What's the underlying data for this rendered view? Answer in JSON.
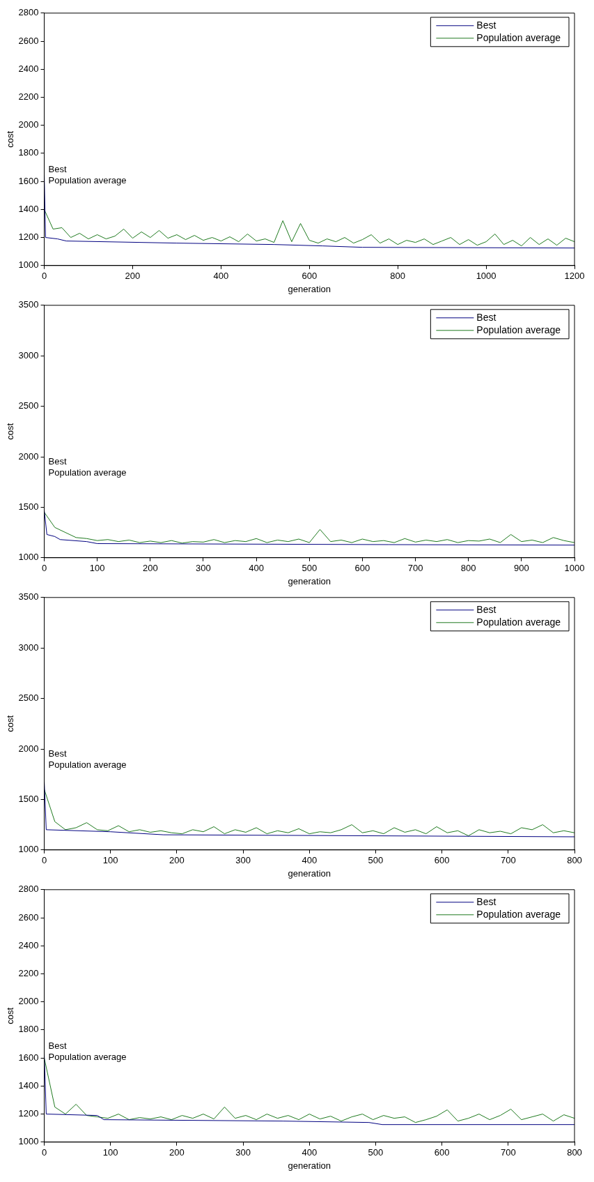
{
  "chart_data": [
    {
      "type": "line",
      "xlabel": "generation",
      "ylabel": "cost",
      "xlim": [
        0,
        1200
      ],
      "xticks": [
        0,
        200,
        400,
        600,
        800,
        1000,
        1200
      ],
      "ylim": [
        1000,
        2800
      ],
      "yticks": [
        1000,
        1200,
        1400,
        1600,
        1800,
        2000,
        2200,
        2400,
        2600,
        2800
      ],
      "grid": false,
      "legend": "top right",
      "marker": "none",
      "line_style": "solid",
      "annotations": [
        "Best",
        "Population average"
      ],
      "series": [
        {
          "name": "Best",
          "color": "#000080",
          "x": [
            0,
            3,
            30,
            50,
            300,
            520,
            630,
            720,
            1200
          ],
          "values": [
            1650,
            1200,
            1190,
            1175,
            1160,
            1150,
            1140,
            1130,
            1125
          ]
        },
        {
          "name": "Population average",
          "color": "#1f7a1f",
          "x": [
            0,
            20,
            40,
            60,
            80,
            100,
            120,
            140,
            160,
            180,
            200,
            220,
            240,
            260,
            280,
            300,
            320,
            340,
            360,
            380,
            400,
            420,
            440,
            460,
            480,
            500,
            520,
            540,
            560,
            580,
            600,
            620,
            640,
            660,
            680,
            700,
            720,
            740,
            760,
            780,
            800,
            820,
            840,
            860,
            880,
            900,
            920,
            940,
            960,
            980,
            1000,
            1020,
            1040,
            1060,
            1080,
            1100,
            1120,
            1140,
            1160,
            1180,
            1200
          ],
          "values": [
            1400,
            1260,
            1270,
            1200,
            1230,
            1190,
            1220,
            1190,
            1210,
            1260,
            1195,
            1240,
            1200,
            1250,
            1195,
            1220,
            1185,
            1215,
            1180,
            1200,
            1175,
            1205,
            1170,
            1225,
            1175,
            1190,
            1165,
            1320,
            1170,
            1300,
            1180,
            1160,
            1190,
            1170,
            1200,
            1160,
            1185,
            1220,
            1160,
            1190,
            1150,
            1180,
            1165,
            1190,
            1150,
            1175,
            1200,
            1150,
            1185,
            1145,
            1170,
            1225,
            1150,
            1180,
            1140,
            1200,
            1150,
            1190,
            1145,
            1195,
            1170
          ]
        }
      ]
    },
    {
      "type": "line",
      "xlabel": "generation",
      "ylabel": "cost",
      "xlim": [
        0,
        1000
      ],
      "xticks": [
        0,
        100,
        200,
        300,
        400,
        500,
        600,
        700,
        800,
        900,
        1000
      ],
      "ylim": [
        1000,
        3500
      ],
      "yticks": [
        1000,
        1500,
        2000,
        2500,
        3000,
        3500
      ],
      "grid": false,
      "legend": "top right",
      "marker": "none",
      "line_style": "solid",
      "annotations": [
        "Best",
        "Population average"
      ],
      "series": [
        {
          "name": "Best",
          "color": "#000080",
          "x": [
            0,
            5,
            20,
            30,
            80,
            100,
            650,
            1000
          ],
          "values": [
            1470,
            1230,
            1210,
            1180,
            1160,
            1140,
            1130,
            1125
          ]
        },
        {
          "name": "Population average",
          "color": "#1f7a1f",
          "x": [
            0,
            20,
            40,
            60,
            80,
            100,
            120,
            140,
            160,
            180,
            200,
            220,
            240,
            260,
            280,
            300,
            320,
            340,
            360,
            380,
            400,
            420,
            440,
            460,
            480,
            500,
            520,
            540,
            560,
            580,
            600,
            620,
            640,
            660,
            680,
            700,
            720,
            740,
            760,
            780,
            800,
            820,
            840,
            860,
            880,
            900,
            920,
            940,
            960,
            980,
            1000
          ],
          "values": [
            1450,
            1300,
            1250,
            1200,
            1190,
            1170,
            1180,
            1160,
            1175,
            1150,
            1165,
            1150,
            1170,
            1145,
            1160,
            1155,
            1180,
            1150,
            1170,
            1160,
            1190,
            1150,
            1175,
            1160,
            1185,
            1150,
            1280,
            1160,
            1175,
            1150,
            1185,
            1160,
            1170,
            1150,
            1190,
            1155,
            1175,
            1160,
            1180,
            1150,
            1170,
            1165,
            1185,
            1150,
            1230,
            1160,
            1175,
            1150,
            1200,
            1170,
            1150
          ]
        }
      ]
    },
    {
      "type": "line",
      "xlabel": "generation",
      "ylabel": "cost",
      "xlim": [
        0,
        800
      ],
      "xticks": [
        0,
        100,
        200,
        300,
        400,
        500,
        600,
        700,
        800
      ],
      "ylim": [
        1000,
        3500
      ],
      "yticks": [
        1000,
        1500,
        2000,
        2500,
        3000,
        3500
      ],
      "grid": false,
      "legend": "top right",
      "marker": "none",
      "line_style": "solid",
      "annotations": [
        "Best",
        "Population average"
      ],
      "series": [
        {
          "name": "Best",
          "color": "#000080",
          "x": [
            0,
            3,
            100,
            180,
            800
          ],
          "values": [
            1680,
            1200,
            1180,
            1150,
            1130
          ]
        },
        {
          "name": "Population average",
          "color": "#1f7a1f",
          "x": [
            0,
            16,
            32,
            48,
            64,
            80,
            96,
            112,
            128,
            144,
            160,
            176,
            192,
            208,
            224,
            240,
            256,
            272,
            288,
            304,
            320,
            336,
            352,
            368,
            384,
            400,
            416,
            432,
            448,
            464,
            480,
            496,
            512,
            528,
            544,
            560,
            576,
            592,
            608,
            624,
            640,
            656,
            672,
            688,
            704,
            720,
            736,
            752,
            768,
            784,
            800
          ],
          "values": [
            1600,
            1280,
            1200,
            1220,
            1270,
            1200,
            1190,
            1240,
            1180,
            1200,
            1175,
            1190,
            1170,
            1160,
            1200,
            1180,
            1230,
            1160,
            1200,
            1175,
            1220,
            1160,
            1190,
            1170,
            1210,
            1160,
            1180,
            1170,
            1200,
            1250,
            1170,
            1190,
            1160,
            1220,
            1175,
            1200,
            1160,
            1230,
            1170,
            1190,
            1140,
            1200,
            1170,
            1185,
            1160,
            1220,
            1200,
            1250,
            1170,
            1190,
            1170
          ]
        }
      ]
    },
    {
      "type": "line",
      "xlabel": "generation",
      "ylabel": "cost",
      "xlim": [
        0,
        800
      ],
      "xticks": [
        0,
        100,
        200,
        300,
        400,
        500,
        600,
        700,
        800
      ],
      "ylim": [
        1000,
        2800
      ],
      "yticks": [
        1000,
        1200,
        1400,
        1600,
        1800,
        2000,
        2200,
        2400,
        2600,
        2800
      ],
      "grid": false,
      "legend": "top right",
      "marker": "none",
      "line_style": "solid",
      "annotations": [
        "Best",
        "Population average"
      ],
      "series": [
        {
          "name": "Best",
          "color": "#000080",
          "x": [
            0,
            3,
            80,
            90,
            360,
            490,
            510,
            800
          ],
          "values": [
            1630,
            1200,
            1190,
            1160,
            1150,
            1140,
            1125,
            1125
          ]
        },
        {
          "name": "Population average",
          "color": "#1f7a1f",
          "x": [
            0,
            16,
            32,
            48,
            64,
            80,
            96,
            112,
            128,
            144,
            160,
            176,
            192,
            208,
            224,
            240,
            256,
            272,
            288,
            304,
            320,
            336,
            352,
            368,
            384,
            400,
            416,
            432,
            448,
            464,
            480,
            496,
            512,
            528,
            544,
            560,
            576,
            592,
            608,
            624,
            640,
            656,
            672,
            688,
            704,
            720,
            736,
            752,
            768,
            784,
            800
          ],
          "values": [
            1600,
            1250,
            1200,
            1270,
            1190,
            1180,
            1170,
            1200,
            1160,
            1175,
            1165,
            1180,
            1160,
            1190,
            1170,
            1200,
            1165,
            1250,
            1170,
            1190,
            1160,
            1200,
            1170,
            1190,
            1160,
            1200,
            1165,
            1185,
            1150,
            1180,
            1200,
            1160,
            1190,
            1170,
            1180,
            1140,
            1160,
            1185,
            1230,
            1150,
            1170,
            1200,
            1160,
            1190,
            1235,
            1160,
            1180,
            1200,
            1150,
            1195,
            1170
          ]
        }
      ]
    }
  ]
}
